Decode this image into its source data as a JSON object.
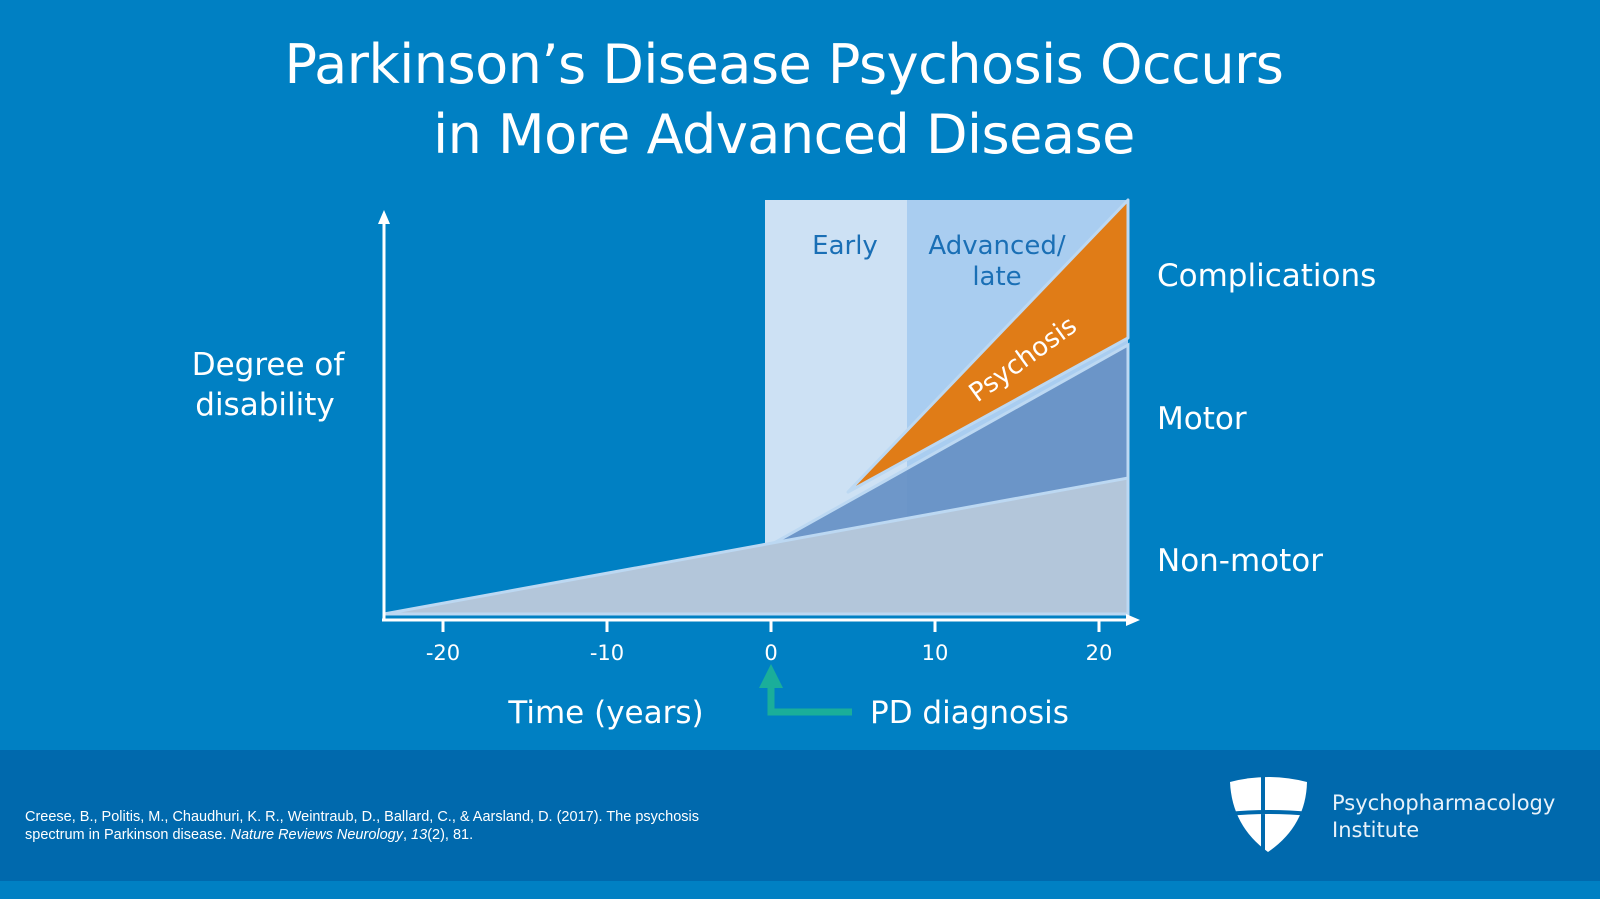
{
  "title": {
    "line1": "Parkinson’s Disease Psychosis Occurs",
    "line2": "in More Advanced Disease"
  },
  "chart_data": {
    "type": "area",
    "xlabel": "Time (years)",
    "ylabel": "Degree of disability",
    "x_ticks": [
      "-20",
      "-10",
      "0",
      "10",
      "20"
    ],
    "xlim": [
      -23.5,
      21.5
    ],
    "stages": [
      {
        "name": "Early",
        "x_range": [
          0,
          8.5
        ]
      },
      {
        "name": "Advanced/ late",
        "x_range": [
          8.5,
          21
        ]
      }
    ],
    "series": [
      {
        "name": "Non-motor",
        "x_start": -23.5
      },
      {
        "name": "Motor",
        "x_start": 0
      },
      {
        "name": "Psychosis",
        "x_start": 5
      }
    ],
    "right_labels": [
      "Complications",
      "Motor",
      "Non-motor"
    ],
    "annotation": "PD diagnosis",
    "annotation_x": 0,
    "colors": {
      "non_motor": "#b3c6da",
      "motor": "#6690c4",
      "psychosis": "#e07c17",
      "early_band": "#cde1f4",
      "advanced_band": "#a9cdf0",
      "arrow": "#1aae9a",
      "background": "#0080c3",
      "footer": "#0069ad"
    }
  },
  "footer": {
    "citation_line1": "Creese, B., Politis, M., Chaudhuri, K. R., Weintraub, D., Ballard, C., & Aarsland, D. (2017). The psychosis",
    "citation_line2_a": "spectrum in Parkinson disease. ",
    "citation_journal": "Nature Reviews Neurology",
    "citation_sep": ", ",
    "citation_volume": "13",
    "citation_rest": "(2), 81.",
    "brand_line1": "Psychopharmacology",
    "brand_line2": "Institute"
  }
}
